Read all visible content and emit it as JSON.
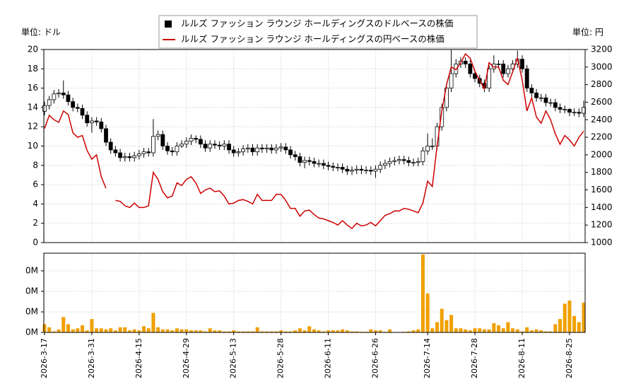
{
  "chart_data": {
    "type": "candlestick",
    "y_unit_label": "単位: ドル",
    "y2_unit_label": "単位: 円",
    "x": [
      "2026-3-17",
      "2026-3-18",
      "2026-3-19",
      "2026-3-20",
      "2026-3-23",
      "2026-3-24",
      "2026-3-25",
      "2026-3-26",
      "2026-3-27",
      "2026-3-30",
      "2026-3-31",
      "2026-4-1",
      "2026-4-2",
      "2026-4-6",
      "2026-4-7",
      "2026-4-8",
      "2026-4-9",
      "2026-4-10",
      "2026-4-13",
      "2026-4-14",
      "2026-4-15",
      "2026-4-16",
      "2026-4-17",
      "2026-4-20",
      "2026-4-21",
      "2026-4-22",
      "2026-4-23",
      "2026-4-24",
      "2026-4-27",
      "2026-4-28",
      "2026-4-29",
      "2026-4-30",
      "2026-5-1",
      "2026-5-4",
      "2026-5-5",
      "2026-5-6",
      "2026-5-7",
      "2026-5-8",
      "2026-5-11",
      "2026-5-12",
      "2026-5-13",
      "2026-5-14",
      "2026-5-15",
      "2026-5-18",
      "2026-5-19",
      "2026-5-20",
      "2026-5-21",
      "2026-5-22",
      "2026-5-26",
      "2026-5-27",
      "2026-5-28",
      "2026-5-29",
      "2026-6-1",
      "2026-6-2",
      "2026-6-3",
      "2026-6-4",
      "2026-6-5",
      "2026-6-8",
      "2026-6-9",
      "2026-6-10",
      "2026-6-11",
      "2026-6-12",
      "2026-6-15",
      "2026-6-16",
      "2026-6-17",
      "2026-6-18",
      "2026-6-22",
      "2026-6-23",
      "2026-6-24",
      "2026-6-25",
      "2026-6-26",
      "2026-6-29",
      "2026-6-30",
      "2026-7-1",
      "2026-7-2",
      "2026-7-6",
      "2026-7-7",
      "2026-7-8",
      "2026-7-9",
      "2026-7-10",
      "2026-7-13",
      "2026-7-14",
      "2026-7-15",
      "2026-7-16",
      "2026-7-17",
      "2026-7-20",
      "2026-7-21",
      "2026-7-22",
      "2026-7-23",
      "2026-7-24",
      "2026-7-27",
      "2026-7-28",
      "2026-7-29",
      "2026-7-30",
      "2026-7-31",
      "2026-8-3",
      "2026-8-4",
      "2026-8-5",
      "2026-8-6",
      "2026-8-7",
      "2026-8-10",
      "2026-8-11",
      "2026-8-12",
      "2026-8-13",
      "2026-8-14",
      "2026-8-17",
      "2026-8-18",
      "2026-8-19",
      "2026-8-20",
      "2026-8-21",
      "2026-8-24",
      "2026-8-25",
      "2026-8-26",
      "2026-8-27",
      "2026-8-28"
    ],
    "xticks": [
      "2026-3-17",
      "2026-3-31",
      "2026-4-15",
      "2026-4-29",
      "2026-5-13",
      "2026-5-28",
      "2026-6-11",
      "2026-6-26",
      "2026-7-14",
      "2026-7-28",
      "2026-8-11",
      "2026-8-25"
    ],
    "ylim": [
      0,
      20
    ],
    "yticks": [
      0,
      2,
      4,
      6,
      8,
      10,
      12,
      14,
      16,
      18,
      20
    ],
    "y2lim": [
      1000,
      3200
    ],
    "y2ticks": [
      1000,
      1200,
      1400,
      1600,
      1800,
      2000,
      2200,
      2400,
      2600,
      2800,
      3000,
      3200
    ],
    "grid": true,
    "series": [
      {
        "name": "ルルズ ファッション ラウンジ ホールディングスのドルベースの株価",
        "type": "candlestick",
        "color": "#000000",
        "open": [
          13.6,
          14.2,
          14.8,
          15.4,
          15.5,
          15.3,
          14.6,
          14.0,
          13.9,
          13.2,
          12.4,
          12.6,
          12.5,
          11.8,
          10.4,
          9.6,
          9.3,
          8.8,
          8.9,
          8.8,
          9.0,
          9.2,
          9.4,
          9.3,
          11.0,
          11.2,
          10.0,
          9.5,
          9.4,
          10.0,
          10.2,
          10.5,
          10.8,
          10.7,
          10.2,
          9.8,
          10.2,
          10.1,
          10.0,
          10.2,
          9.6,
          9.3,
          9.4,
          9.7,
          9.8,
          9.4,
          9.8,
          9.7,
          9.8,
          9.6,
          9.8,
          9.9,
          9.6,
          9.1,
          8.9,
          8.3,
          8.5,
          8.4,
          8.2,
          8.2,
          8.0,
          7.9,
          7.8,
          7.8,
          7.6,
          7.4,
          7.5,
          7.6,
          7.5,
          7.5,
          7.4,
          7.6,
          8.0,
          8.2,
          8.4,
          8.5,
          8.6,
          8.5,
          8.3,
          8.3,
          8.4,
          9.5,
          10.0,
          10.0,
          12.0,
          14.0,
          16.0,
          17.5,
          18.5,
          18.8,
          18.5,
          17.5,
          17.0,
          16.5,
          16.0,
          18.0,
          18.5,
          18.5,
          17.5,
          18.0,
          18.5,
          19.0,
          18.0,
          16.0,
          15.5,
          15.0,
          15.0,
          14.5,
          14.5,
          14.0,
          13.8,
          13.8,
          13.5,
          13.5,
          13.4
        ],
        "high": [
          14.6,
          15.2,
          15.8,
          15.9,
          16.8,
          15.7,
          15.0,
          14.4,
          14.3,
          13.6,
          13.0,
          13.0,
          12.9,
          12.2,
          10.8,
          10.0,
          9.7,
          9.3,
          9.3,
          9.4,
          9.6,
          9.8,
          9.8,
          12.8,
          11.6,
          11.6,
          10.4,
          9.9,
          10.4,
          10.6,
          10.9,
          11.2,
          11.1,
          11.1,
          10.6,
          10.6,
          10.6,
          10.5,
          10.6,
          10.6,
          10.0,
          9.8,
          10.1,
          10.2,
          10.2,
          10.2,
          10.2,
          10.2,
          10.2,
          10.2,
          10.3,
          10.3,
          10.0,
          9.5,
          9.3,
          8.9,
          8.9,
          8.8,
          8.6,
          8.6,
          8.4,
          8.3,
          8.2,
          8.2,
          8.0,
          7.9,
          8.0,
          8.0,
          7.9,
          7.9,
          8.0,
          8.4,
          8.6,
          8.8,
          8.9,
          9.0,
          9.0,
          8.9,
          8.7,
          8.8,
          9.9,
          11.3,
          10.8,
          12.4,
          14.4,
          16.4,
          20.0,
          19.0,
          19.2,
          19.2,
          18.9,
          17.9,
          17.4,
          16.9,
          18.4,
          19.4,
          18.9,
          18.9,
          18.4,
          18.9,
          19.9,
          19.4,
          18.4,
          16.4,
          15.9,
          15.4,
          15.4,
          14.9,
          14.9,
          14.4,
          14.2,
          13.9,
          13.9,
          13.9,
          14.7
        ],
        "low": [
          13.2,
          13.8,
          14.4,
          15.0,
          14.9,
          14.2,
          13.6,
          13.5,
          12.8,
          12.0,
          11.4,
          12.1,
          11.4,
          10.0,
          9.2,
          8.9,
          8.4,
          8.4,
          8.4,
          8.4,
          8.6,
          8.8,
          8.9,
          8.9,
          10.6,
          9.6,
          9.1,
          9.0,
          9.0,
          9.8,
          9.8,
          10.1,
          10.3,
          9.8,
          9.4,
          9.4,
          9.7,
          9.6,
          9.6,
          9.2,
          8.9,
          8.9,
          9.0,
          9.3,
          9.0,
          9.0,
          9.3,
          9.3,
          9.2,
          9.2,
          9.4,
          9.2,
          8.7,
          8.5,
          7.9,
          7.7,
          8.0,
          7.8,
          7.8,
          7.6,
          7.5,
          7.4,
          7.4,
          7.2,
          7.0,
          7.0,
          7.1,
          7.1,
          7.1,
          7.0,
          6.7,
          7.2,
          7.6,
          7.8,
          8.0,
          8.1,
          8.1,
          7.9,
          7.9,
          7.9,
          8.0,
          9.1,
          9.6,
          9.6,
          11.6,
          13.6,
          15.6,
          17.1,
          18.1,
          18.1,
          17.1,
          16.6,
          16.1,
          15.6,
          15.6,
          17.6,
          18.1,
          17.1,
          17.1,
          17.6,
          18.1,
          17.6,
          15.6,
          15.1,
          14.6,
          14.6,
          14.1,
          14.1,
          13.6,
          13.4,
          13.4,
          13.1,
          13.1,
          13.0,
          13.0
        ],
        "close": [
          14.2,
          14.8,
          15.4,
          15.5,
          15.3,
          14.6,
          14.0,
          13.9,
          13.2,
          12.4,
          12.6,
          12.5,
          11.8,
          10.4,
          9.6,
          9.3,
          8.8,
          8.9,
          8.8,
          9.0,
          9.2,
          9.4,
          9.3,
          11.0,
          11.2,
          10.0,
          9.5,
          9.4,
          10.0,
          10.2,
          10.5,
          10.8,
          10.7,
          10.2,
          9.8,
          10.2,
          10.1,
          10.0,
          10.2,
          9.6,
          9.3,
          9.4,
          9.7,
          9.8,
          9.4,
          9.8,
          9.7,
          9.8,
          9.6,
          9.8,
          9.9,
          9.6,
          9.1,
          8.9,
          8.3,
          8.5,
          8.4,
          8.2,
          8.2,
          8.0,
          7.9,
          7.8,
          7.8,
          7.6,
          7.4,
          7.5,
          7.6,
          7.5,
          7.5,
          7.4,
          7.6,
          8.0,
          8.2,
          8.4,
          8.5,
          8.6,
          8.5,
          8.3,
          8.3,
          8.4,
          9.5,
          10.0,
          10.0,
          12.0,
          14.0,
          16.0,
          17.5,
          18.5,
          18.8,
          18.5,
          17.5,
          17.0,
          16.5,
          16.0,
          18.0,
          18.5,
          18.5,
          17.5,
          18.0,
          18.5,
          19.0,
          18.0,
          16.0,
          15.5,
          15.0,
          15.0,
          14.5,
          14.5,
          14.0,
          13.8,
          13.8,
          13.5,
          13.5,
          13.4,
          14.0
        ]
      },
      {
        "name": "ルルズ ファッション ラウンジ ホールディングスの円ベースの株価",
        "type": "line",
        "axis": "y2",
        "color": "#cc0000",
        "values": [
          2300,
          2450,
          2400,
          2370,
          2500,
          2460,
          2250,
          2200,
          2220,
          2050,
          1950,
          2000,
          1750,
          1620,
          null,
          1480,
          1470,
          1420,
          1400,
          1450,
          1400,
          1400,
          1420,
          1800,
          1720,
          1580,
          1510,
          1530,
          1680,
          1650,
          1720,
          1750,
          1680,
          1560,
          1600,
          1620,
          1580,
          1590,
          1530,
          1440,
          1450,
          1480,
          1490,
          1470,
          1440,
          1550,
          1480,
          1480,
          1480,
          1550,
          1550,
          1480,
          1390,
          1390,
          1300,
          1360,
          1370,
          1320,
          1280,
          1270,
          1250,
          1230,
          1200,
          1250,
          1200,
          1160,
          1220,
          1190,
          1200,
          1230,
          1190,
          1250,
          1310,
          1330,
          1360,
          1360,
          1390,
          1380,
          1360,
          1340,
          1450,
          1700,
          1640,
          2100,
          2500,
          2800,
          3000,
          2970,
          3050,
          3150,
          3100,
          2950,
          2850,
          2750,
          3050,
          3000,
          3000,
          2850,
          2800,
          2950,
          3100,
          2850,
          2500,
          2650,
          2430,
          2360,
          2500,
          2400,
          2240,
          2120,
          2220,
          2170,
          2100,
          2200,
          2270
        ]
      }
    ],
    "volume": {
      "type": "bar",
      "color": "#f0a000",
      "ylim": [
        0,
        386000
      ],
      "yticks": [
        {
          "value": 0,
          "label": "0M"
        },
        {
          "value": 100000,
          "label": "0M"
        },
        {
          "value": 200000,
          "label": "0M"
        },
        {
          "value": 300000,
          "label": "0M"
        }
      ],
      "values": [
        40000,
        25000,
        5000,
        15000,
        75000,
        40000,
        15000,
        20000,
        35000,
        10000,
        65000,
        20000,
        20000,
        15000,
        20000,
        10000,
        25000,
        25000,
        10000,
        15000,
        10000,
        30000,
        20000,
        95000,
        25000,
        15000,
        15000,
        10000,
        20000,
        15000,
        15000,
        10000,
        10000,
        10000,
        5000,
        20000,
        10000,
        10000,
        5000,
        5000,
        10000,
        5000,
        5000,
        5000,
        5000,
        25000,
        5000,
        5000,
        5000,
        5000,
        10000,
        5000,
        5000,
        10000,
        20000,
        10000,
        30000,
        15000,
        10000,
        5000,
        10000,
        10000,
        10000,
        15000,
        10000,
        5000,
        5000,
        3000,
        3000,
        15000,
        10000,
        10000,
        3000,
        15000,
        2000,
        2000,
        3000,
        5000,
        10000,
        15000,
        380000,
        190000,
        20000,
        50000,
        115000,
        60000,
        85000,
        20000,
        20000,
        15000,
        10000,
        20000,
        20000,
        15000,
        15000,
        45000,
        35000,
        20000,
        50000,
        20000,
        15000,
        5000,
        25000,
        10000,
        15000,
        10000,
        5000,
        5000,
        40000,
        65000,
        140000,
        155000,
        80000,
        50000,
        145000
      ]
    }
  }
}
